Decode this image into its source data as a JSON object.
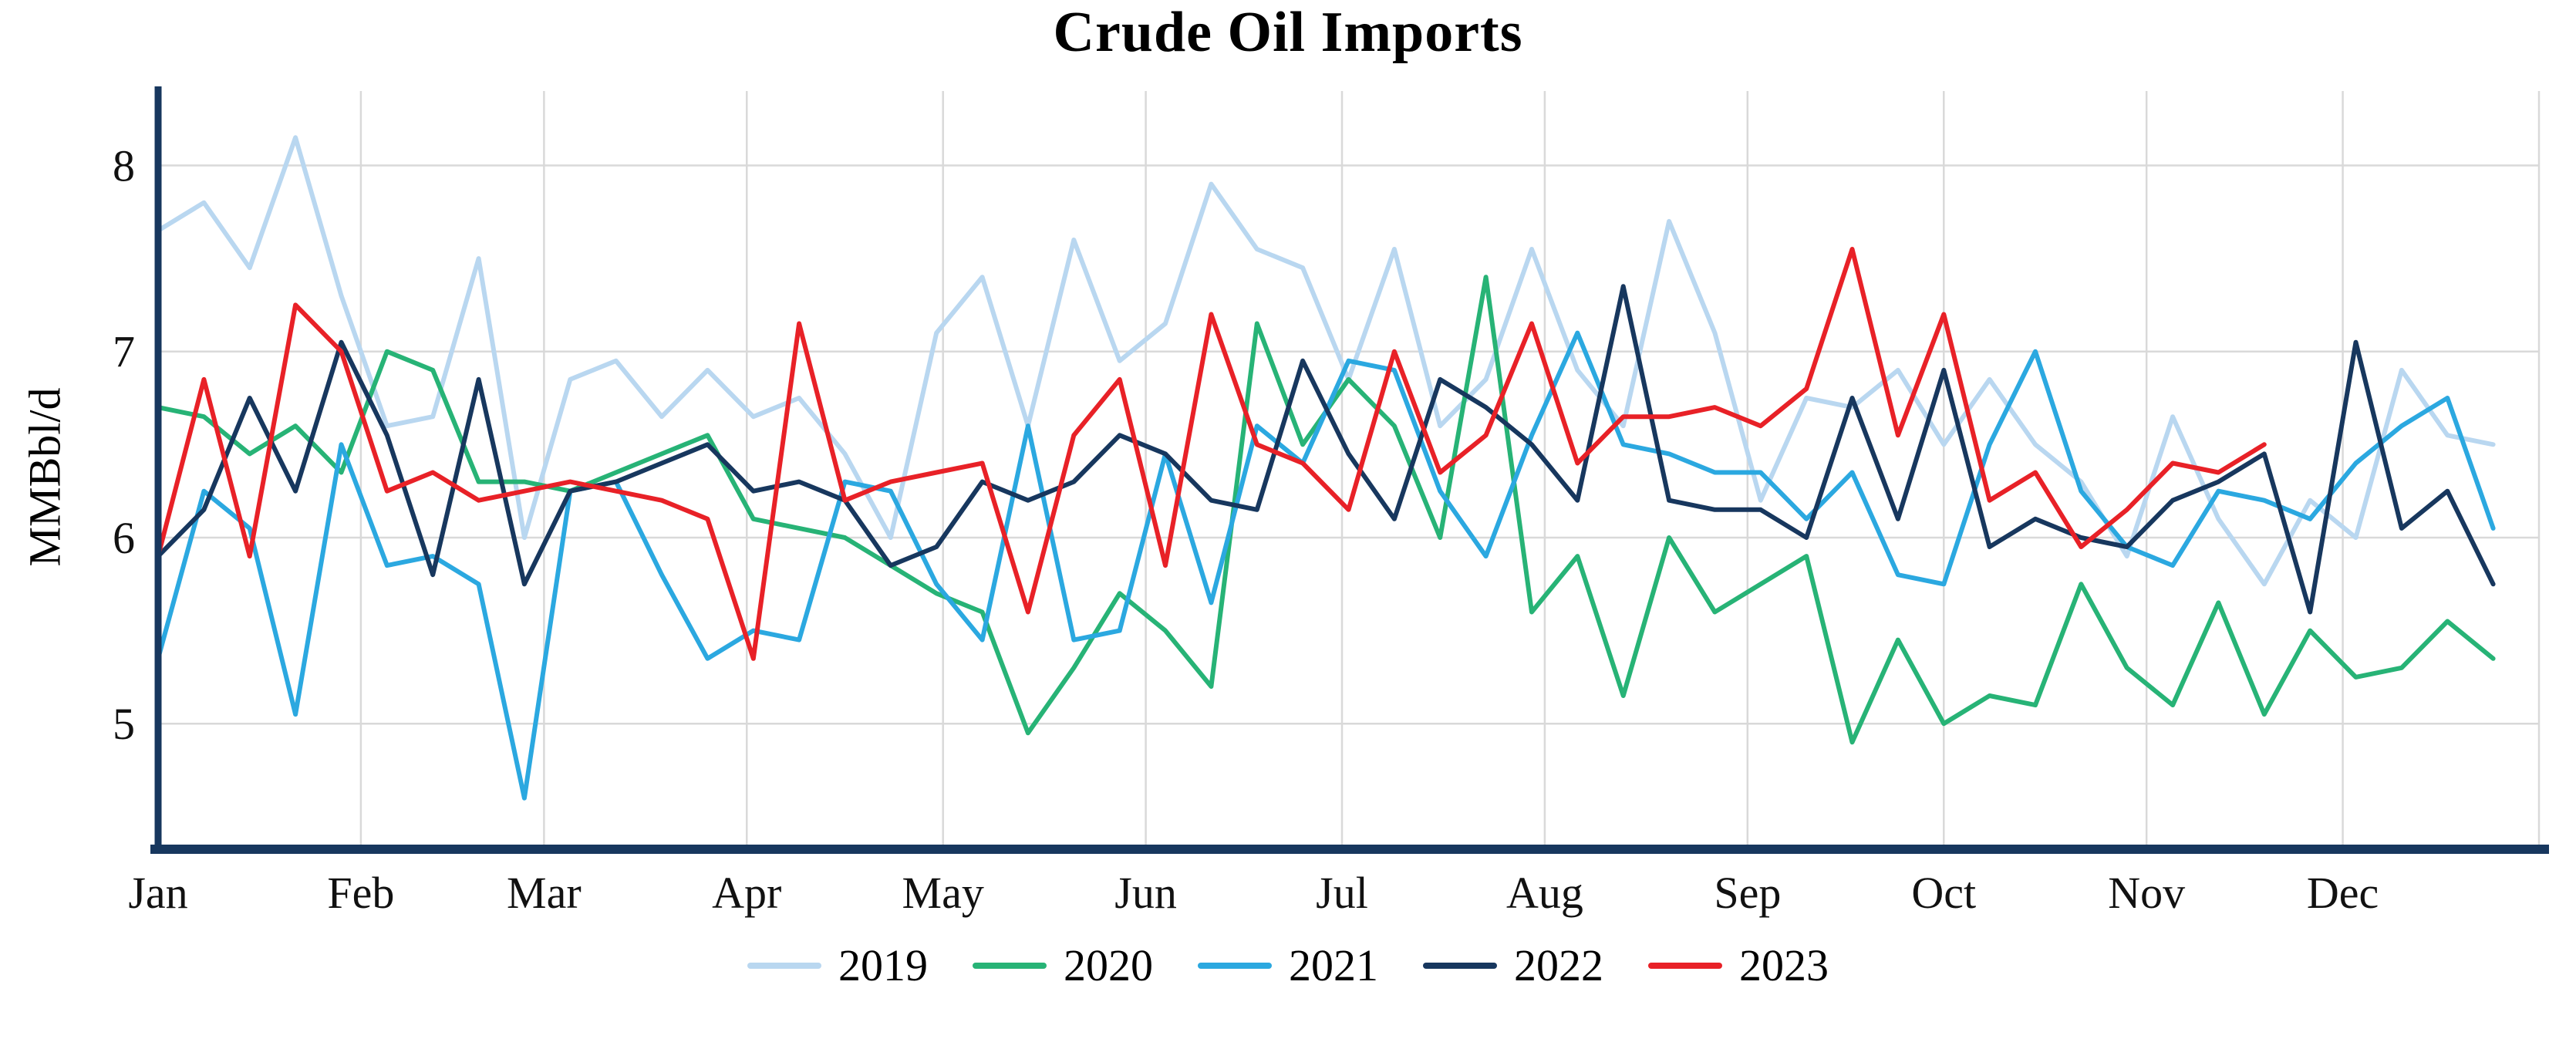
{
  "chart_data": {
    "type": "line",
    "title": "Crude Oil Imports",
    "ylabel": "MMBbl/d",
    "x_ticks": [
      "Jan",
      "Feb",
      "Mar",
      "Apr",
      "May",
      "Jun",
      "Jul",
      "Aug",
      "Sep",
      "Oct",
      "Nov",
      "Dec"
    ],
    "month_start_days": [
      0,
      31,
      59,
      90,
      120,
      151,
      181,
      212,
      243,
      273,
      304,
      334
    ],
    "y_ticks": [
      5,
      6,
      7,
      8
    ],
    "ylim": [
      4.35,
      8.4
    ],
    "x_unit": "week-of-year",
    "grid": true,
    "legend_position": "bottom-center",
    "axis_color": "#17375e",
    "grid_color": "#d9d9d9",
    "series": [
      {
        "name": "2019",
        "color": "#b9d7f0",
        "values": [
          7.65,
          7.8,
          7.45,
          8.15,
          7.3,
          6.6,
          6.65,
          7.5,
          6.0,
          6.85,
          6.95,
          6.65,
          6.9,
          6.65,
          6.75,
          6.45,
          6.0,
          7.1,
          7.4,
          6.6,
          7.6,
          6.95,
          7.15,
          7.9,
          7.55,
          7.45,
          6.85,
          7.55,
          6.6,
          6.85,
          7.55,
          6.9,
          6.6,
          7.7,
          7.1,
          6.2,
          6.75,
          6.7,
          6.9,
          6.5,
          6.85,
          6.5,
          6.3,
          5.9,
          6.65,
          6.1,
          5.75,
          6.2,
          6.0,
          6.9,
          6.55,
          6.5
        ]
      },
      {
        "name": "2020",
        "color": "#27b376",
        "values": [
          6.7,
          6.65,
          6.45,
          6.6,
          6.35,
          7.0,
          6.9,
          6.3,
          6.3,
          6.25,
          6.35,
          6.45,
          6.55,
          6.1,
          6.05,
          6.0,
          5.85,
          5.7,
          5.6,
          4.95,
          5.3,
          5.7,
          5.5,
          5.2,
          7.15,
          6.5,
          6.85,
          6.6,
          6.0,
          7.4,
          5.6,
          5.9,
          5.15,
          6.0,
          5.6,
          5.75,
          5.9,
          4.9,
          5.45,
          5.0,
          5.15,
          5.1,
          5.75,
          5.3,
          5.1,
          5.65,
          5.05,
          5.5,
          5.25,
          5.3,
          5.55,
          5.35
        ]
      },
      {
        "name": "2021",
        "color": "#2ba8e0",
        "values": [
          5.35,
          6.25,
          6.05,
          5.05,
          6.5,
          5.85,
          5.9,
          5.75,
          4.6,
          6.25,
          6.3,
          5.8,
          5.35,
          5.5,
          5.45,
          6.3,
          6.25,
          5.75,
          5.45,
          6.6,
          5.45,
          5.5,
          6.45,
          5.65,
          6.6,
          6.4,
          6.95,
          6.9,
          6.25,
          5.9,
          6.55,
          7.1,
          6.5,
          6.45,
          6.35,
          6.35,
          6.1,
          6.35,
          5.8,
          5.75,
          6.5,
          7.0,
          6.25,
          5.95,
          5.85,
          6.25,
          6.2,
          6.1,
          6.4,
          6.6,
          6.75,
          6.05
        ]
      },
      {
        "name": "2022",
        "color": "#17375e",
        "values": [
          5.9,
          6.15,
          6.75,
          6.25,
          7.05,
          6.55,
          5.8,
          6.85,
          5.75,
          6.25,
          6.3,
          6.4,
          6.5,
          6.25,
          6.3,
          6.2,
          5.85,
          5.95,
          6.3,
          6.2,
          6.3,
          6.55,
          6.45,
          6.2,
          6.15,
          6.95,
          6.45,
          6.1,
          6.85,
          6.7,
          6.5,
          6.2,
          7.35,
          6.2,
          6.15,
          6.15,
          6.0,
          6.75,
          6.1,
          6.9,
          5.95,
          6.1,
          6.0,
          5.95,
          6.2,
          6.3,
          6.45,
          5.6,
          7.05,
          6.05,
          6.25,
          5.75
        ]
      },
      {
        "name": "2023",
        "color": "#e82127",
        "values": [
          5.9,
          6.85,
          5.9,
          7.25,
          7.0,
          6.25,
          6.35,
          6.2,
          6.25,
          6.3,
          6.25,
          6.2,
          6.1,
          5.35,
          7.15,
          6.2,
          6.3,
          6.35,
          6.4,
          5.6,
          6.55,
          6.85,
          5.85,
          7.2,
          6.5,
          6.4,
          6.15,
          7.0,
          6.35,
          6.55,
          7.15,
          6.4,
          6.65,
          6.65,
          6.7,
          6.6,
          6.8,
          7.55,
          6.55,
          7.2,
          6.2,
          6.35,
          5.95,
          6.15,
          6.4,
          6.35,
          6.5
        ]
      }
    ]
  }
}
